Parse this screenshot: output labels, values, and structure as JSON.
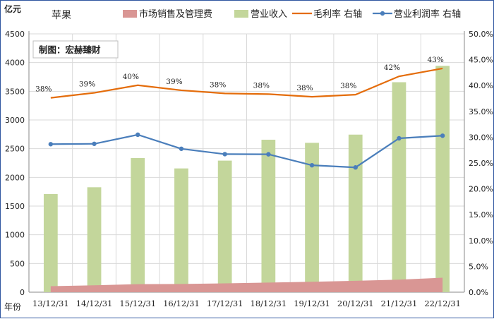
{
  "chart_data": {
    "type": "bar",
    "title": "苹果",
    "watermark": "制图：宏赫臻财",
    "left_unit": "亿元",
    "xlabel": "年份",
    "categories": [
      "13/12/31",
      "14/12/31",
      "15/12/31",
      "16/12/31",
      "17/12/31",
      "18/12/31",
      "19/12/31",
      "20/12/31",
      "21/12/31",
      "22/12/31"
    ],
    "ylim_left": [
      0,
      4500
    ],
    "left_ticks": [
      0,
      500,
      1000,
      1500,
      2000,
      2500,
      3000,
      3500,
      4000,
      4500
    ],
    "ylim_right": [
      0,
      0.5
    ],
    "right_ticks": [
      "0.0%",
      "5.0%",
      "10.0%",
      "15.0%",
      "20.0%",
      "25.0%",
      "30.0%",
      "35.0%",
      "40.0%",
      "45.0%",
      "50.0%"
    ],
    "grid": true,
    "legend_position": "top",
    "series": [
      {
        "name": "市场销售及管理费",
        "type": "area",
        "axis": "left",
        "color": "#d99694",
        "values": [
          105,
          120,
          140,
          143,
          154,
          167,
          182,
          198,
          219,
          252
        ]
      },
      {
        "name": "营业收入",
        "type": "bar",
        "axis": "left",
        "color": "#c3d69b",
        "values": [
          1709,
          1828,
          2337,
          2156,
          2292,
          2656,
          2602,
          2745,
          3658,
          3943
        ]
      },
      {
        "name": "毛利率 右轴",
        "type": "line",
        "axis": "right",
        "color": "#e46c0a",
        "values": [
          0.3762,
          0.3859,
          0.4006,
          0.3908,
          0.3847,
          0.3834,
          0.3782,
          0.3823,
          0.4178,
          0.4331
        ],
        "labels": [
          "38%",
          "39%",
          "40%",
          "39%",
          "38%",
          "38%",
          "38%",
          "38%",
          "42%",
          "43%"
        ]
      },
      {
        "name": "营业利润率 右轴",
        "type": "line",
        "axis": "right",
        "color": "#4a7ebb",
        "marker": "circle",
        "values": [
          0.2865,
          0.2872,
          0.3048,
          0.2776,
          0.2672,
          0.2669,
          0.2457,
          0.2415,
          0.2978,
          0.3029
        ]
      }
    ]
  }
}
